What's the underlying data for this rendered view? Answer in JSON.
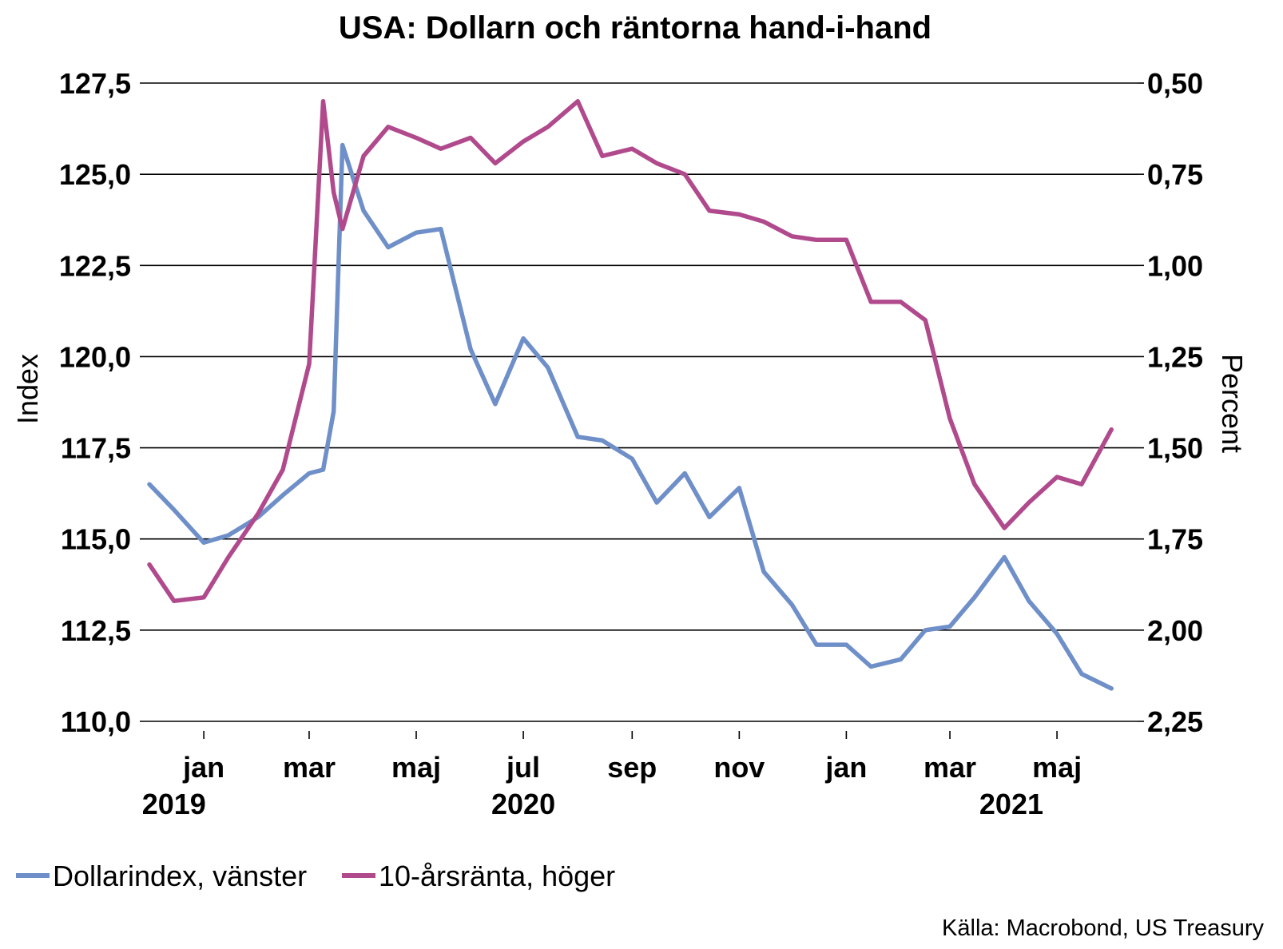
{
  "chart_data": {
    "type": "line",
    "title": "USA: Dollarn och räntorna hand-i-hand",
    "ylabel": "Index",
    "y2label": "Percent",
    "ylim": [
      110,
      127.5
    ],
    "y2lim": [
      2.25,
      0.5
    ],
    "y2_inverted": true,
    "grid": true,
    "legend_position": "bottom-left",
    "source": "Källa: Macrobond, US Treasury",
    "y_ticks": [
      "127,5",
      "125,0",
      "122,5",
      "120,0",
      "117,5",
      "115,0",
      "112,5",
      "110,0"
    ],
    "y2_ticks": [
      "0,50",
      "0,75",
      "1,00",
      "1,25",
      "1,50",
      "1,75",
      "2,00",
      "2,25"
    ],
    "x_tick_labels": [
      "jan",
      "mar",
      "maj",
      "jul",
      "sep",
      "nov",
      "jan",
      "mar",
      "maj"
    ],
    "x_ticks": [
      "2020-01-01",
      "2020-03-01",
      "2020-05-01",
      "2020-07-01",
      "2020-09-01",
      "2020-11-01",
      "2021-01-01",
      "2021-03-01",
      "2021-05-01"
    ],
    "year_labels": [
      "2019",
      "2020",
      "2021"
    ],
    "x": [
      "2019-12-01",
      "2019-12-15",
      "2020-01-01",
      "2020-01-15",
      "2020-02-01",
      "2020-02-15",
      "2020-03-01",
      "2020-03-09",
      "2020-03-15",
      "2020-03-20",
      "2020-04-01",
      "2020-04-15",
      "2020-05-01",
      "2020-05-15",
      "2020-06-01",
      "2020-06-15",
      "2020-07-01",
      "2020-07-15",
      "2020-08-01",
      "2020-08-15",
      "2020-09-01",
      "2020-09-15",
      "2020-10-01",
      "2020-10-15",
      "2020-11-01",
      "2020-11-15",
      "2020-12-01",
      "2020-12-15",
      "2021-01-01",
      "2021-01-15",
      "2021-02-01",
      "2021-02-15",
      "2021-03-01",
      "2021-03-15",
      "2021-04-01",
      "2021-04-15",
      "2021-05-01",
      "2021-05-15",
      "2021-06-01"
    ],
    "series": [
      {
        "name": "Dollarindex, vänster",
        "axis": "left",
        "color": "#6f8fc9",
        "values": [
          116.5,
          115.8,
          114.9,
          115.1,
          115.6,
          116.2,
          116.8,
          116.9,
          118.5,
          125.8,
          124.0,
          123.0,
          123.4,
          123.5,
          120.2,
          118.7,
          120.5,
          119.7,
          117.8,
          117.7,
          117.2,
          116.0,
          116.8,
          115.6,
          116.4,
          114.1,
          113.2,
          112.1,
          112.1,
          111.5,
          111.7,
          112.5,
          112.6,
          113.4,
          114.5,
          113.3,
          112.4,
          111.3,
          110.9
        ]
      },
      {
        "name": "10-årsränta, höger",
        "axis": "right",
        "color": "#b04a8c",
        "values": [
          1.82,
          1.92,
          1.91,
          1.8,
          1.68,
          1.56,
          1.27,
          0.55,
          0.8,
          0.9,
          0.7,
          0.62,
          0.65,
          0.68,
          0.65,
          0.72,
          0.66,
          0.62,
          0.55,
          0.7,
          0.68,
          0.72,
          0.75,
          0.85,
          0.86,
          0.88,
          0.92,
          0.93,
          0.93,
          1.1,
          1.1,
          1.15,
          1.42,
          1.6,
          1.72,
          1.65,
          1.58,
          1.6,
          1.45
        ]
      }
    ]
  }
}
